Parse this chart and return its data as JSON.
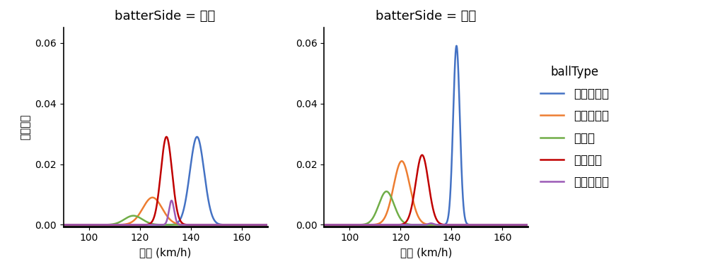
{
  "title_left": "batterSide = 右打",
  "title_right": "batterSide = 左打",
  "xlabel": "球速 (km/h)",
  "ylabel": "確率密度",
  "legend_title": "ballType",
  "xlim": [
    90,
    170
  ],
  "ylim": [
    -0.0005,
    0.065
  ],
  "yticks": [
    0.0,
    0.02,
    0.04,
    0.06
  ],
  "xticks": [
    100,
    120,
    140,
    160
  ],
  "ball_types": [
    "ストレート",
    "スライダー",
    "カーブ",
    "フォーク",
    "ツーシーム"
  ],
  "colors": [
    "#4472C4",
    "#ED7D31",
    "#70AD47",
    "#C00000",
    "#9B59B6"
  ],
  "right_curves": {
    "ストレート": {
      "mean": 142.5,
      "std": 2.8,
      "peak": 0.029
    },
    "スライダー": {
      "mean": 125.0,
      "std": 3.8,
      "peak": 0.009
    },
    "カーブ": {
      "mean": 117.5,
      "std": 3.5,
      "peak": 0.003
    },
    "フォーク": {
      "mean": 130.5,
      "std": 2.2,
      "peak": 0.029
    },
    "ツーシーム": {
      "mean": 132.5,
      "std": 1.0,
      "peak": 0.008
    }
  },
  "left_curves": {
    "ストレート": {
      "mean": 142.0,
      "std": 1.3,
      "peak": 0.059
    },
    "スライダー": {
      "mean": 120.5,
      "std": 3.2,
      "peak": 0.021
    },
    "カーブ": {
      "mean": 114.5,
      "std": 3.0,
      "peak": 0.011
    },
    "フォーク": {
      "mean": 128.5,
      "std": 2.5,
      "peak": 0.023
    },
    "ツーシーム": {
      "mean": 132.0,
      "std": 1.0,
      "peak": 0.0005
    }
  },
  "background_color": "#FFFFFF",
  "title_fontsize": 13,
  "label_fontsize": 11,
  "tick_fontsize": 10,
  "legend_fontsize": 12
}
